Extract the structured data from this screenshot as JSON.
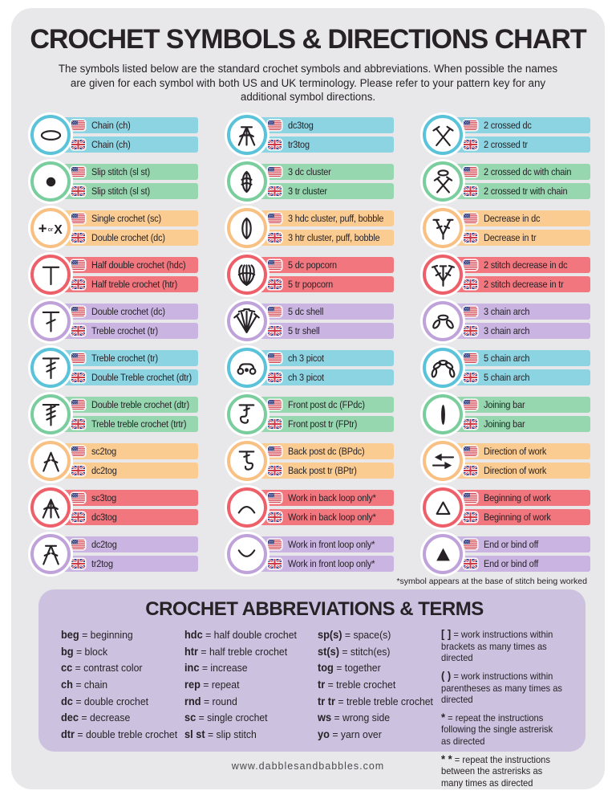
{
  "header": {
    "title": "CROCHET SYMBOLS & DIRECTIONS CHART",
    "subtitle": "The symbols listed below are the standard crochet symbols and abbreviations. When possible the names are given for each symbol with both US and UK terminology. Please refer to your pattern key for any additional symbol directions."
  },
  "colors": {
    "teal": {
      "ring": "#5ac3da",
      "pill": "#8dd4e2"
    },
    "green": {
      "ring": "#7acd9d",
      "pill": "#96d7b0"
    },
    "orange": {
      "ring": "#f9c083",
      "pill": "#fbcc92"
    },
    "red": {
      "ring": "#ee6069",
      "pill": "#f2767e"
    },
    "purple": {
      "ring": "#bfa2da",
      "pill": "#cab4e1"
    },
    "panel": "#ccc2df",
    "card": "#e8e7ea",
    "text": "#262226"
  },
  "symbol_columns": [
    [
      {
        "icon": "chain-icon",
        "color": "teal",
        "us": "Chain (ch)",
        "uk": "Chain (ch)"
      },
      {
        "icon": "slip-stitch-icon",
        "color": "green",
        "us": "Slip stitch (sl st)",
        "uk": "Slip stitch (sl st)"
      },
      {
        "icon": "single-crochet-plus-x-icon",
        "color": "orange",
        "us": "Single crochet (sc)",
        "uk": "Double crochet (dc)"
      },
      {
        "icon": "half-double-crochet-icon",
        "color": "red",
        "us": "Half double crochet (hdc)",
        "uk": "Half treble crochet (htr)"
      },
      {
        "icon": "double-crochet-icon",
        "color": "purple",
        "us": "Double crochet (dc)",
        "uk": "Treble crochet (tr)"
      },
      {
        "icon": "treble-crochet-icon",
        "color": "teal",
        "us": "Treble crochet (tr)",
        "uk": "Double Treble crochet (dtr)"
      },
      {
        "icon": "double-treble-crochet-icon",
        "color": "green",
        "us": "Double treble crochet (dtr)",
        "uk": "Treble treble crochet (trtr)"
      },
      {
        "icon": "sc2tog-icon",
        "color": "orange",
        "us": "sc2tog",
        "uk": "dc2tog"
      },
      {
        "icon": "sc3tog-icon",
        "color": "red",
        "us": "sc3tog",
        "uk": "dc3tog"
      },
      {
        "icon": "dc2tog-icon",
        "color": "purple",
        "us": "dc2tog",
        "uk": "tr2tog"
      }
    ],
    [
      {
        "icon": "dc3tog-icon",
        "color": "teal",
        "us": "dc3tog",
        "uk": "tr3tog"
      },
      {
        "icon": "cluster-3dc-icon",
        "color": "green",
        "us": "3 dc cluster",
        "uk": "3 tr cluster"
      },
      {
        "icon": "cluster-3hdc-icon",
        "color": "orange",
        "us": "3 hdc cluster, puff, bobble",
        "uk": "3 htr cluster, puff, bobble"
      },
      {
        "icon": "popcorn-5dc-icon",
        "color": "red",
        "us": "5 dc popcorn",
        "uk": "5 tr popcorn"
      },
      {
        "icon": "shell-5dc-icon",
        "color": "purple",
        "us": "5 dc shell",
        "uk": "5 tr shell"
      },
      {
        "icon": "picot-icon",
        "color": "teal",
        "us": "ch 3 picot",
        "uk": "ch 3 picot"
      },
      {
        "icon": "front-post-icon",
        "color": "green",
        "us": "Front post dc (FPdc)",
        "uk": "Front post tr (FPtr)"
      },
      {
        "icon": "back-post-icon",
        "color": "orange",
        "us": "Back post dc (BPdc)",
        "uk": "Back post tr (BPtr)"
      },
      {
        "icon": "back-loop-icon",
        "color": "red",
        "us": "Work in back loop only*",
        "uk": "Work in back loop only*"
      },
      {
        "icon": "front-loop-icon",
        "color": "purple",
        "us": "Work in front loop only*",
        "uk": "Work in front loop only*"
      }
    ],
    [
      {
        "icon": "crossed-2dc-icon",
        "color": "teal",
        "us": "2 crossed dc",
        "uk": "2 crossed tr"
      },
      {
        "icon": "crossed-2dc-chain-icon",
        "color": "green",
        "us": "2 crossed dc with chain",
        "uk": "2 crossed tr with chain"
      },
      {
        "icon": "decrease-dc-icon",
        "color": "orange",
        "us": "Decrease in dc",
        "uk": "Decrease in tr"
      },
      {
        "icon": "decrease-2stitch-icon",
        "color": "red",
        "us": "2 stitch decrease in dc",
        "uk": "2 stitch decrease in tr"
      },
      {
        "icon": "chain-arch-3-icon",
        "color": "purple",
        "us": "3 chain arch",
        "uk": "3 chain arch"
      },
      {
        "icon": "chain-arch-5-icon",
        "color": "teal",
        "us": "5 chain arch",
        "uk": "5 chain arch"
      },
      {
        "icon": "joining-bar-icon",
        "color": "green",
        "us": "Joining bar",
        "uk": "Joining bar"
      },
      {
        "icon": "direction-of-work-icon",
        "color": "orange",
        "us": "Direction of work",
        "uk": "Direction of work"
      },
      {
        "icon": "beginning-of-work-icon",
        "color": "red",
        "us": "Beginning of work",
        "uk": "Beginning of work"
      },
      {
        "icon": "end-bind-off-icon",
        "color": "purple",
        "us": "End or bind off",
        "uk": "End or bind off"
      }
    ]
  ],
  "footnote": "*symbol appears at the base of stitch being worked",
  "abbreviations": {
    "title": "CROCHET ABBREVIATIONS & TERMS",
    "columns": [
      [
        {
          "term": "beg",
          "def": "beginning"
        },
        {
          "term": "bg",
          "def": "block"
        },
        {
          "term": "cc",
          "def": "contrast color"
        },
        {
          "term": "ch",
          "def": "chain"
        },
        {
          "term": "dc",
          "def": "double crochet"
        },
        {
          "term": "dec",
          "def": "decrease"
        },
        {
          "term": "dtr",
          "def": "double treble crochet"
        }
      ],
      [
        {
          "term": "hdc",
          "def": "half double crochet"
        },
        {
          "term": "htr",
          "def": "half treble crochet"
        },
        {
          "term": "inc",
          "def": "increase"
        },
        {
          "term": "rep",
          "def": "repeat"
        },
        {
          "term": "rnd",
          "def": "round"
        },
        {
          "term": "sc",
          "def": "single crochet"
        },
        {
          "term": "sl st",
          "def": "slip stitch"
        }
      ],
      [
        {
          "term": "sp(s)",
          "def": "space(s)"
        },
        {
          "term": "st(s)",
          "def": "stitch(es)"
        },
        {
          "term": "tog",
          "def": "together"
        },
        {
          "term": "tr",
          "def": "treble crochet"
        },
        {
          "term": "tr tr",
          "def": "treble treble crochet"
        },
        {
          "term": "ws",
          "def": "wrong side"
        },
        {
          "term": "yo",
          "def": "yarn over"
        }
      ]
    ],
    "notes": [
      {
        "symbol": "[ ]",
        "text": "= work instructions within brackets as many times as directed"
      },
      {
        "symbol": "( )",
        "text": "= work instructions within parentheses as many times as directed"
      },
      {
        "symbol": "*",
        "text": "= repeat the instructions following the single astrerisk as directed"
      },
      {
        "symbol": "* *",
        "text": "= repeat the instructions between the astrerisks as many times as directed"
      }
    ]
  },
  "flags": {
    "us": "us-flag-icon",
    "uk": "uk-flag-icon"
  },
  "footer": {
    "url": "www.dabblesandbabbles.com"
  }
}
